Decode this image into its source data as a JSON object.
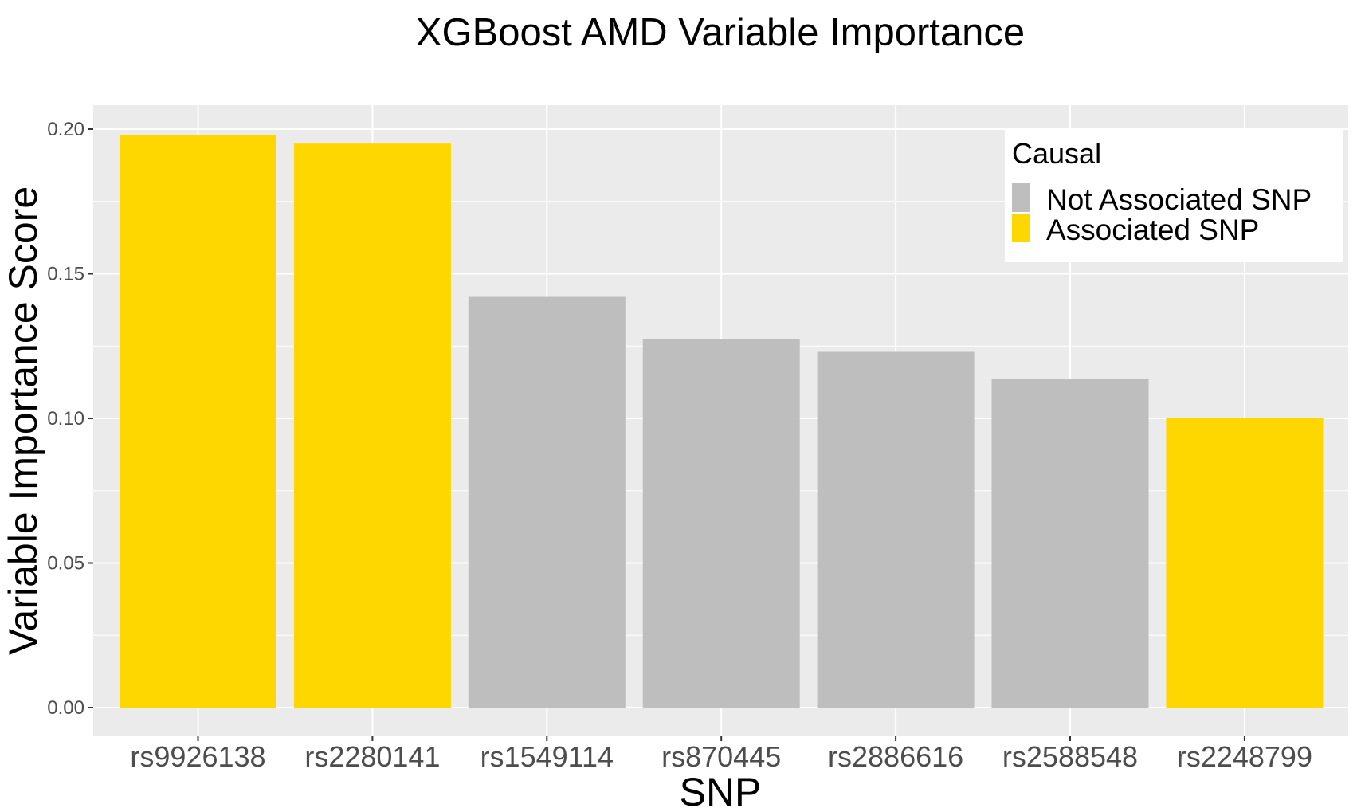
{
  "chart_data": {
    "type": "bar",
    "title": "XGBoost AMD Variable Importance",
    "xlabel": "SNP",
    "ylabel": "Variable Importance Score",
    "categories": [
      "rs9926138",
      "rs2280141",
      "rs1549114",
      "rs870445",
      "rs2886616",
      "rs2588548",
      "rs2248799"
    ],
    "values": [
      0.198,
      0.195,
      0.142,
      0.1275,
      0.123,
      0.1135,
      0.1
    ],
    "groups": [
      "Associated SNP",
      "Associated SNP",
      "Not Associated SNP",
      "Not Associated SNP",
      "Not Associated SNP",
      "Not Associated SNP",
      "Associated SNP"
    ],
    "ylim": [
      0,
      0.2
    ],
    "yticks": [
      0.0,
      0.05,
      0.1,
      0.15,
      0.2
    ],
    "ytick_labels": [
      "0.00",
      "0.05",
      "0.10",
      "0.15",
      "0.20"
    ],
    "grid": true,
    "legend": {
      "title": "Causal",
      "position": "top-right",
      "entries": [
        {
          "label": "Not Associated SNP",
          "color": "#bebebe"
        },
        {
          "label": "Associated SNP",
          "color": "#ffd700"
        }
      ]
    },
    "colors": {
      "Associated SNP": "#ffd700",
      "Not Associated SNP": "#bebebe",
      "panel_background": "#ebebeb",
      "grid": "#ffffff"
    }
  }
}
